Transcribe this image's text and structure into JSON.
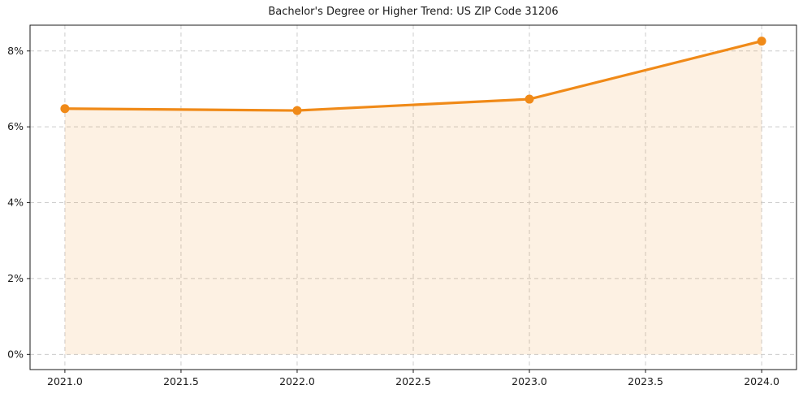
{
  "chart_data": {
    "type": "line",
    "title": "Bachelor's Degree or Higher Trend: US ZIP Code 31206",
    "x": [
      2021.0,
      2022.0,
      2023.0,
      2024.0
    ],
    "values": [
      6.48,
      6.43,
      6.73,
      8.26
    ],
    "unit": "%",
    "x_ticks": [
      2021.0,
      2021.5,
      2022.0,
      2022.5,
      2023.0,
      2023.5,
      2024.0
    ],
    "x_tick_labels": [
      "2021.0",
      "2021.5",
      "2022.0",
      "2022.5",
      "2023.0",
      "2023.5",
      "2024.0"
    ],
    "y_ticks": [
      0,
      2,
      4,
      6,
      8
    ],
    "y_tick_labels": [
      "0%",
      "2%",
      "4%",
      "6%",
      "8%"
    ],
    "xlim": [
      2020.85,
      2024.15
    ],
    "ylim": [
      -0.4,
      8.68
    ],
    "grid": true,
    "grid_style": "dashed",
    "legend": "none",
    "marker": "circle",
    "area_fill": true,
    "colors": {
      "line": "#F08A18",
      "marker": "#F08A18",
      "area_fill": "rgba(240, 138, 24, 0.12)",
      "grid": "#CCCCCC",
      "spine": "#1A1A1A",
      "text": "#1A1A1A",
      "background": "#FFFFFF"
    }
  }
}
